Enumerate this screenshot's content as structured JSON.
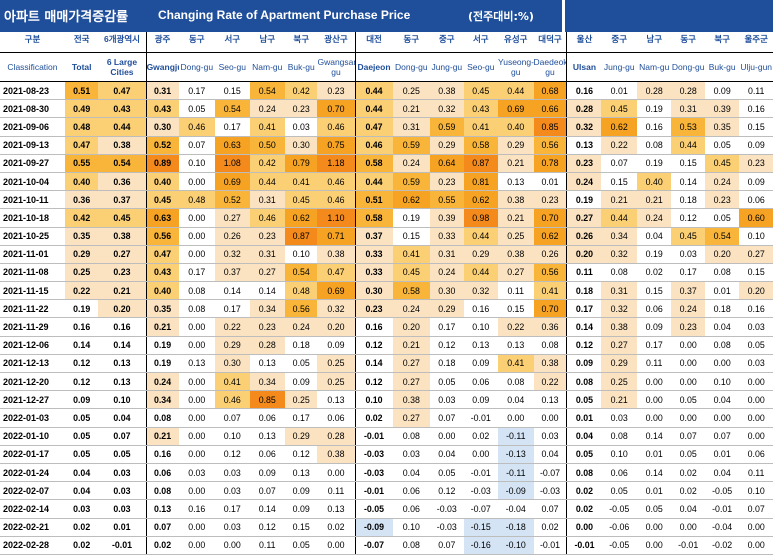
{
  "header": {
    "title_ko": "아파트 매매가격증감률",
    "title_en": "Changing Rate of Apartment Purchase Price",
    "unit": "(전주대비:%)"
  },
  "columns": [
    {
      "ko": "구분",
      "en": "Classification"
    },
    {
      "ko": "전국",
      "en": "Total"
    },
    {
      "ko": "6개광역시",
      "en": "6 Large Cities"
    },
    {
      "ko": "광주",
      "en": "Gwangju"
    },
    {
      "ko": "동구",
      "en": "Dong-gu"
    },
    {
      "ko": "서구",
      "en": "Seo-gu"
    },
    {
      "ko": "남구",
      "en": "Nam-gu"
    },
    {
      "ko": "북구",
      "en": "Buk-gu"
    },
    {
      "ko": "광산구",
      "en": "Gwangsan-gu"
    },
    {
      "ko": "대전",
      "en": "Daejeon"
    },
    {
      "ko": "동구",
      "en": "Dong-gu"
    },
    {
      "ko": "중구",
      "en": "Jung-gu"
    },
    {
      "ko": "서구",
      "en": "Seo-gu"
    },
    {
      "ko": "유성구",
      "en": "Yuseong-gu"
    },
    {
      "ko": "대덕구",
      "en": "Daedeok-gu"
    },
    {
      "ko": "울산",
      "en": "Ulsan"
    },
    {
      "ko": "중구",
      "en": "Jung-gu"
    },
    {
      "ko": "남구",
      "en": "Nam-gu"
    },
    {
      "ko": "동구",
      "en": "Dong-gu"
    },
    {
      "ko": "북구",
      "en": "Buk-gu"
    },
    {
      "ko": "울주군",
      "en": "Ulju-gun"
    }
  ],
  "rows": [
    {
      "date": "2021-08-23",
      "v": [
        "0.51",
        "0.47",
        "0.31",
        "0.17",
        "0.15",
        "0.54",
        "0.42",
        "0.23",
        "0.44",
        "0.25",
        "0.38",
        "0.45",
        "0.44",
        "0.68",
        "0.16",
        "0.01",
        "0.28",
        "0.28",
        "0.09",
        "0.11"
      ]
    },
    {
      "date": "2021-08-30",
      "v": [
        "0.49",
        "0.43",
        "0.43",
        "0.05",
        "0.54",
        "0.24",
        "0.23",
        "0.70",
        "0.44",
        "0.21",
        "0.32",
        "0.43",
        "0.69",
        "0.66",
        "0.28",
        "0.45",
        "0.19",
        "0.31",
        "0.39",
        "0.16"
      ]
    },
    {
      "date": "2021-09-06",
      "v": [
        "0.48",
        "0.44",
        "0.30",
        "0.46",
        "0.17",
        "0.41",
        "0.03",
        "0.46",
        "0.47",
        "0.31",
        "0.59",
        "0.41",
        "0.40",
        "0.85",
        "0.32",
        "0.62",
        "0.16",
        "0.53",
        "0.35",
        "0.15"
      ]
    },
    {
      "date": "2021-09-13",
      "v": [
        "0.47",
        "0.38",
        "0.52",
        "0.07",
        "0.63",
        "0.50",
        "0.30",
        "0.75",
        "0.46",
        "0.59",
        "0.29",
        "0.58",
        "0.29",
        "0.56",
        "0.13",
        "0.22",
        "0.08",
        "0.44",
        "0.05",
        "0.09"
      ]
    },
    {
      "date": "2021-09-27",
      "v": [
        "0.55",
        "0.54",
        "0.89",
        "0.10",
        "1.08",
        "0.42",
        "0.79",
        "1.18",
        "0.58",
        "0.24",
        "0.64",
        "0.87",
        "0.21",
        "0.78",
        "0.23",
        "0.07",
        "0.19",
        "0.15",
        "0.45",
        "0.23"
      ]
    },
    {
      "date": "2021-10-04",
      "v": [
        "0.40",
        "0.36",
        "0.40",
        "0.00",
        "0.69",
        "0.44",
        "0.41",
        "0.46",
        "0.44",
        "0.59",
        "0.23",
        "0.81",
        "0.13",
        "0.01",
        "0.24",
        "0.15",
        "0.40",
        "0.14",
        "0.24",
        "0.09"
      ]
    },
    {
      "date": "2021-10-11",
      "v": [
        "0.36",
        "0.37",
        "0.45",
        "0.48",
        "0.52",
        "0.31",
        "0.45",
        "0.46",
        "0.51",
        "0.62",
        "0.55",
        "0.62",
        "0.38",
        "0.23",
        "0.19",
        "0.21",
        "0.21",
        "0.18",
        "0.23",
        "0.06"
      ]
    },
    {
      "date": "2021-10-18",
      "v": [
        "0.42",
        "0.45",
        "0.63",
        "0.00",
        "0.27",
        "0.46",
        "0.62",
        "1.10",
        "0.58",
        "0.19",
        "0.39",
        "0.98",
        "0.21",
        "0.70",
        "0.27",
        "0.44",
        "0.24",
        "0.12",
        "0.05",
        "0.60"
      ]
    },
    {
      "date": "2021-10-25",
      "v": [
        "0.35",
        "0.38",
        "0.56",
        "0.00",
        "0.26",
        "0.23",
        "0.87",
        "0.71",
        "0.37",
        "0.15",
        "0.33",
        "0.44",
        "0.25",
        "0.62",
        "0.26",
        "0.34",
        "0.04",
        "0.45",
        "0.54",
        "0.10"
      ]
    },
    {
      "date": "2021-11-01",
      "v": [
        "0.29",
        "0.27",
        "0.47",
        "0.00",
        "0.32",
        "0.31",
        "0.10",
        "0.38",
        "0.33",
        "0.41",
        "0.31",
        "0.29",
        "0.38",
        "0.26",
        "0.20",
        "0.32",
        "0.19",
        "0.03",
        "0.20",
        "0.27"
      ]
    },
    {
      "date": "2021-11-08",
      "v": [
        "0.25",
        "0.23",
        "0.43",
        "0.17",
        "0.37",
        "0.27",
        "0.54",
        "0.47",
        "0.33",
        "0.45",
        "0.24",
        "0.44",
        "0.27",
        "0.56",
        "0.11",
        "0.08",
        "0.02",
        "0.17",
        "0.08",
        "0.15"
      ]
    },
    {
      "date": "2021-11-15",
      "v": [
        "0.22",
        "0.21",
        "0.40",
        "0.08",
        "0.14",
        "0.14",
        "0.48",
        "0.69",
        "0.30",
        "0.58",
        "0.30",
        "0.32",
        "0.11",
        "0.41",
        "0.18",
        "0.31",
        "0.15",
        "0.37",
        "0.01",
        "0.20"
      ]
    },
    {
      "date": "2021-11-22",
      "v": [
        "0.19",
        "0.20",
        "0.35",
        "0.08",
        "0.17",
        "0.34",
        "0.56",
        "0.32",
        "0.23",
        "0.24",
        "0.29",
        "0.16",
        "0.15",
        "0.70",
        "0.17",
        "0.32",
        "0.06",
        "0.24",
        "0.18",
        "0.16"
      ]
    },
    {
      "date": "2021-11-29",
      "v": [
        "0.16",
        "0.16",
        "0.21",
        "0.00",
        "0.22",
        "0.23",
        "0.24",
        "0.20",
        "0.16",
        "0.20",
        "0.17",
        "0.10",
        "0.22",
        "0.36",
        "0.14",
        "0.38",
        "0.09",
        "0.23",
        "0.04",
        "0.03"
      ]
    },
    {
      "date": "2021-12-06",
      "v": [
        "0.14",
        "0.14",
        "0.19",
        "0.00",
        "0.29",
        "0.28",
        "0.18",
        "0.09",
        "0.12",
        "0.21",
        "0.12",
        "0.13",
        "0.13",
        "0.08",
        "0.12",
        "0.27",
        "0.17",
        "0.00",
        "0.08",
        "0.05"
      ]
    },
    {
      "date": "2021-12-13",
      "v": [
        "0.12",
        "0.13",
        "0.19",
        "0.13",
        "0.30",
        "0.13",
        "0.05",
        "0.25",
        "0.14",
        "0.27",
        "0.18",
        "0.09",
        "0.41",
        "0.38",
        "0.09",
        "0.29",
        "0.11",
        "0.00",
        "0.00",
        "0.03"
      ]
    },
    {
      "date": "2021-12-20",
      "v": [
        "0.12",
        "0.13",
        "0.24",
        "0.00",
        "0.41",
        "0.34",
        "0.09",
        "0.25",
        "0.12",
        "0.27",
        "0.05",
        "0.06",
        "0.08",
        "0.22",
        "0.08",
        "0.25",
        "0.00",
        "0.00",
        "0.10",
        "0.00"
      ]
    },
    {
      "date": "2021-12-27",
      "v": [
        "0.09",
        "0.10",
        "0.34",
        "0.00",
        "0.46",
        "0.85",
        "0.25",
        "0.13",
        "0.10",
        "0.38",
        "0.03",
        "0.09",
        "0.04",
        "0.13",
        "0.05",
        "0.21",
        "0.00",
        "0.05",
        "0.04",
        "0.00"
      ]
    },
    {
      "date": "2022-01-03",
      "v": [
        "0.05",
        "0.04",
        "0.08",
        "0.00",
        "0.07",
        "0.06",
        "0.17",
        "0.06",
        "0.02",
        "0.27",
        "0.07",
        "-0.01",
        "0.00",
        "0.00",
        "0.01",
        "0.03",
        "0.00",
        "0.00",
        "0.00",
        "0.00"
      ]
    },
    {
      "date": "2022-01-10",
      "v": [
        "0.05",
        "0.07",
        "0.21",
        "0.00",
        "0.10",
        "0.13",
        "0.29",
        "0.28",
        "-0.01",
        "0.08",
        "0.00",
        "0.02",
        "-0.11",
        "0.03",
        "0.04",
        "0.08",
        "0.14",
        "0.07",
        "0.07",
        "0.00"
      ]
    },
    {
      "date": "2022-01-17",
      "v": [
        "0.05",
        "0.05",
        "0.16",
        "0.00",
        "0.12",
        "0.06",
        "0.12",
        "0.38",
        "-0.03",
        "0.03",
        "0.04",
        "0.00",
        "-0.13",
        "0.04",
        "0.05",
        "0.10",
        "0.01",
        "0.05",
        "0.01",
        "0.06"
      ]
    },
    {
      "date": "2022-01-24",
      "v": [
        "0.04",
        "0.03",
        "0.06",
        "0.03",
        "0.03",
        "0.09",
        "0.13",
        "0.00",
        "-0.03",
        "0.04",
        "0.05",
        "-0.01",
        "-0.11",
        "-0.07",
        "0.08",
        "0.06",
        "0.14",
        "0.02",
        "0.04",
        "0.11"
      ]
    },
    {
      "date": "2022-02-07",
      "v": [
        "0.04",
        "0.03",
        "0.08",
        "0.00",
        "0.03",
        "0.07",
        "0.09",
        "0.11",
        "-0.01",
        "0.06",
        "0.12",
        "-0.03",
        "-0.09",
        "-0.03",
        "0.02",
        "0.05",
        "0.01",
        "0.02",
        "-0.05",
        "0.10"
      ]
    },
    {
      "date": "2022-02-14",
      "v": [
        "0.03",
        "0.03",
        "0.13",
        "0.16",
        "0.17",
        "0.14",
        "0.09",
        "0.13",
        "-0.05",
        "0.06",
        "-0.03",
        "-0.07",
        "-0.04",
        "0.07",
        "0.02",
        "-0.05",
        "0.05",
        "0.04",
        "-0.01",
        "0.07"
      ]
    },
    {
      "date": "2022-02-21",
      "v": [
        "0.02",
        "0.01",
        "0.07",
        "0.00",
        "0.03",
        "0.12",
        "0.15",
        "0.02",
        "-0.09",
        "0.10",
        "-0.03",
        "-0.15",
        "-0.18",
        "0.02",
        "0.00",
        "-0.06",
        "0.00",
        "0.00",
        "-0.04",
        "0.00"
      ]
    },
    {
      "date": "2022-02-28",
      "v": [
        "0.02",
        "-0.01",
        "0.02",
        "0.00",
        "0.00",
        "0.11",
        "0.05",
        "0.00",
        "-0.07",
        "0.08",
        "0.07",
        "-0.16",
        "-0.10",
        "-0.01",
        "-0.01",
        "-0.05",
        "0.00",
        "-0.01",
        "-0.02",
        "0.00"
      ]
    }
  ]
}
